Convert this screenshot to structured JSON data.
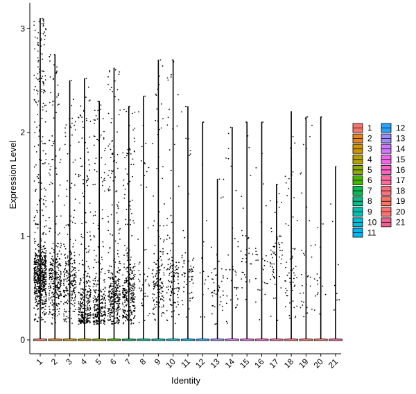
{
  "chart_data": {
    "type": "violin-jitter",
    "xlabel": "Identity",
    "ylabel": "Expression Level",
    "ylim": [
      -0.15,
      3.25
    ],
    "yticks": [
      0,
      1,
      2,
      3
    ],
    "categories": [
      "1",
      "2",
      "3",
      "4",
      "5",
      "6",
      "7",
      "8",
      "9",
      "10",
      "11",
      "12",
      "13",
      "14",
      "15",
      "16",
      "17",
      "18",
      "19",
      "20",
      "21"
    ],
    "violin_max": [
      3.1,
      2.75,
      2.5,
      2.52,
      2.3,
      2.62,
      2.25,
      2.35,
      2.7,
      2.7,
      2.25,
      2.1,
      1.55,
      2.05,
      2.1,
      2.1,
      1.5,
      2.2,
      2.15,
      2.15,
      1.67
    ],
    "expressing_cluster_center": [
      0.6,
      0.55,
      0.55,
      0.3,
      0.3,
      0.4,
      0.4,
      0.5,
      0.5,
      0.5,
      0.6,
      0.6,
      0.45,
      0.6,
      0.8,
      0.7,
      0.8,
      0.55,
      0.5,
      0.6,
      0.5
    ],
    "expressing_point_counts": [
      700,
      320,
      250,
      300,
      280,
      330,
      300,
      50,
      150,
      130,
      60,
      15,
      45,
      35,
      35,
      30,
      60,
      60,
      35,
      18,
      8
    ],
    "zero_baseline_value": 0,
    "legend": {
      "position": "right",
      "title": "",
      "entries": [
        "1",
        "2",
        "3",
        "4",
        "5",
        "6",
        "7",
        "8",
        "9",
        "10",
        "11",
        "12",
        "13",
        "14",
        "15",
        "16",
        "17",
        "18",
        "19",
        "20",
        "21"
      ],
      "colors": [
        "#F8766D",
        "#E7851E",
        "#D09400",
        "#B2A100",
        "#89AC00",
        "#45B500",
        "#00BC51",
        "#00C087",
        "#00C0B2",
        "#00BCD6",
        "#00B3F2",
        "#29A3FF",
        "#9C8DFF",
        "#D277FF",
        "#F166E8",
        "#FF61C7",
        "#FF6AA0",
        "#FF6F7E",
        "#FF7363",
        "#FA7476",
        "#F06294"
      ]
    }
  }
}
